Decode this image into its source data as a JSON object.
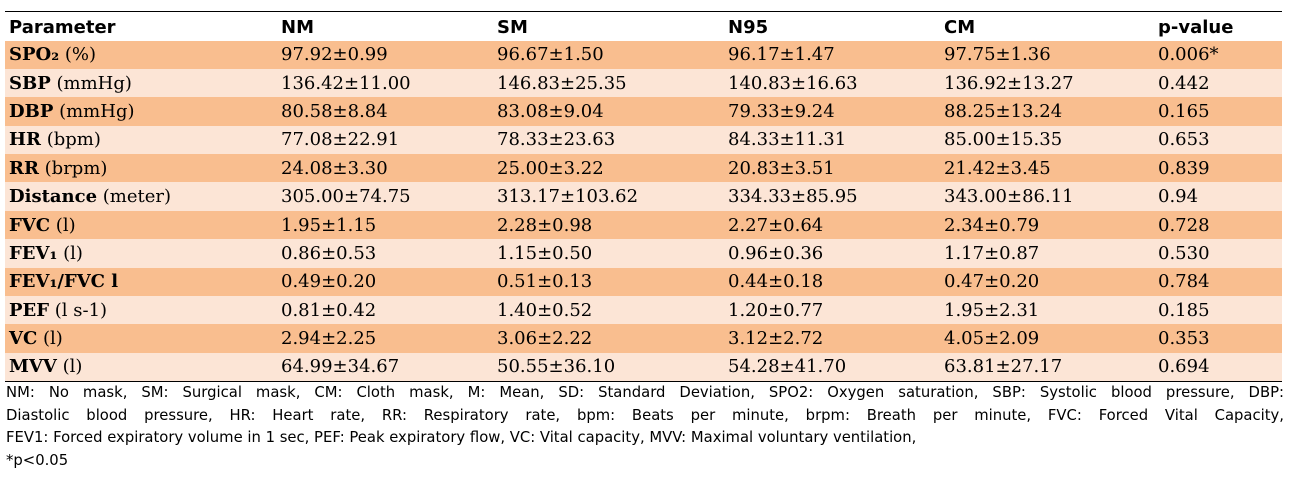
{
  "table": {
    "headers": [
      "Parameter",
      "NM",
      "SM",
      "N95",
      "CM",
      "p-value"
    ],
    "rows": [
      {
        "name": "SPO₂",
        "unit": " (%)",
        "values": [
          "97.92±0.99",
          "96.67±1.50",
          "96.17±1.47",
          "97.75±1.36",
          "0.006*"
        ]
      },
      {
        "name": "SBP",
        "unit": " (mmHg)",
        "values": [
          "136.42±11.00",
          "146.83±25.35",
          "140.83±16.63",
          "136.92±13.27",
          "0.442"
        ]
      },
      {
        "name": "DBP",
        "unit": " (mmHg)",
        "values": [
          "80.58±8.84",
          "83.08±9.04",
          "79.33±9.24",
          "88.25±13.24",
          "0.165"
        ]
      },
      {
        "name": "HR",
        "unit": " (bpm)",
        "values": [
          "77.08±22.91",
          "78.33±23.63",
          "84.33±11.31",
          "85.00±15.35",
          "0.653"
        ]
      },
      {
        "name": "RR",
        "unit": " (brpm)",
        "values": [
          "24.08±3.30",
          "25.00±3.22",
          "20.83±3.51",
          "21.42±3.45",
          "0.839"
        ]
      },
      {
        "name": "Distance",
        "unit": " (meter)",
        "values": [
          "305.00±74.75",
          "313.17±103.62",
          "334.33±85.95",
          "343.00±86.11",
          "0.94"
        ]
      },
      {
        "name": "FVC",
        "unit": " (l)",
        "values": [
          "1.95±1.15",
          "2.28±0.98",
          "2.27±0.64",
          "2.34±0.79",
          "0.728"
        ]
      },
      {
        "name": "FEV₁",
        "unit": " (l)",
        "values": [
          "0.86±0.53",
          "1.15±0.50",
          "0.96±0.36",
          "1.17±0.87",
          "0.530"
        ]
      },
      {
        "name": "FEV₁/FVC l",
        "unit": "",
        "values": [
          "0.49±0.20",
          "0.51±0.13",
          "0.44±0.18",
          "0.47±0.20",
          "0.784"
        ]
      },
      {
        "name": "PEF",
        "unit": " (l s-1)",
        "values": [
          "0.81±0.42",
          "1.40±0.52",
          "1.20±0.77",
          "1.95±2.31",
          "0.185"
        ]
      },
      {
        "name": "VC",
        "unit": " (l)",
        "values": [
          "2.94±2.25",
          "3.06±2.22",
          "3.12±2.72",
          "4.05±2.09",
          "0.353"
        ]
      },
      {
        "name": "MVV",
        "unit": " (l)",
        "values": [
          "64.99±34.67",
          "50.55±36.10",
          "54.28±41.70",
          "63.81±27.17",
          "0.694"
        ]
      }
    ]
  },
  "notes": {
    "line1": "NM: No mask, SM: Surgical mask, CM: Cloth mask, M: Mean, SD: Standard Deviation, SPO2: Oxygen saturation, SBP: Systolic blood pressure, DBP:",
    "line2": "Diastolic blood pressure, HR: Heart rate, RR: Respiratory rate, bpm: Beats per minute, brpm: Breath per minute, FVC: Forced Vital Capacity,",
    "line3": "FEV1: Forced expiratory volume in 1 sec, PEF: Peak expiratory flow, VC: Vital capacity, MVV: Maximal voluntary ventilation,",
    "line4": "*p<0.05"
  }
}
